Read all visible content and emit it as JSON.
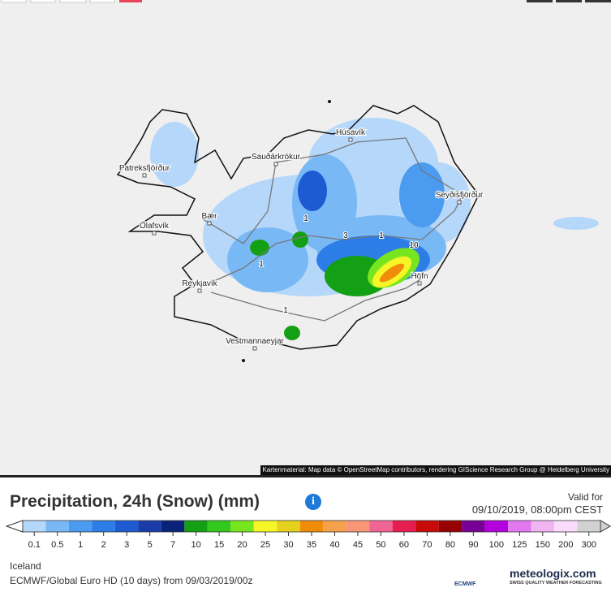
{
  "map": {
    "places": [
      "Húsavík",
      "Sauðárkrókur",
      "Patreksfjörður",
      "Seyðisfjörður",
      "Ólafsvík",
      "Bær",
      "Reykjavík",
      "Höfn",
      "Vestmannaeyjar"
    ],
    "contour_labels": [
      1,
      1,
      3,
      1,
      10,
      1
    ],
    "attribution": "Kartenmaterial: Map data © OpenStreetMap contributors, rendering GIScience Research Group @ Heidelberg University"
  },
  "panel": {
    "title": "Precipitation, 24h (Snow) (mm)",
    "info_icon": "i",
    "valid_label": "Valid for",
    "valid_time": "09/10/2019, 08:00pm CEST",
    "legend": [
      {
        "value": 0.1,
        "color": "#b4d7fa"
      },
      {
        "value": 0.5,
        "color": "#78b9f5"
      },
      {
        "value": 1,
        "color": "#4b9bf0"
      },
      {
        "value": 2,
        "color": "#2d7de6"
      },
      {
        "value": 3,
        "color": "#1e5ad2"
      },
      {
        "value": 5,
        "color": "#1a3ca8"
      },
      {
        "value": 7,
        "color": "#0a2378"
      },
      {
        "value": 10,
        "color": "#14a014"
      },
      {
        "value": 15,
        "color": "#32c81e"
      },
      {
        "value": 20,
        "color": "#78e61e"
      },
      {
        "value": 25,
        "color": "#f5f528"
      },
      {
        "value": 30,
        "color": "#e6d21e"
      },
      {
        "value": 35,
        "color": "#f08c0a"
      },
      {
        "value": 40,
        "color": "#f5a04b"
      },
      {
        "value": 45,
        "color": "#fa9678"
      },
      {
        "value": 50,
        "color": "#f06496"
      },
      {
        "value": 60,
        "color": "#e61e50"
      },
      {
        "value": 70,
        "color": "#c80a0a"
      },
      {
        "value": 80,
        "color": "#960000"
      },
      {
        "value": 90,
        "color": "#780096"
      },
      {
        "value": 100,
        "color": "#b400dc"
      },
      {
        "value": 125,
        "color": "#e178f0"
      },
      {
        "value": 150,
        "color": "#f0b4f0"
      },
      {
        "value": 200,
        "color": "#fadcfa"
      },
      {
        "value": 300,
        "color": "#d2d2d2"
      }
    ],
    "region": "Iceland",
    "model": "ECMWF/Global Euro HD (10 days) from 09/03/2019/00z",
    "ecmwf": "ECMWF",
    "brand": "meteologix.com",
    "tagline": "SWISS QUALITY WEATHER FORECASTING"
  }
}
